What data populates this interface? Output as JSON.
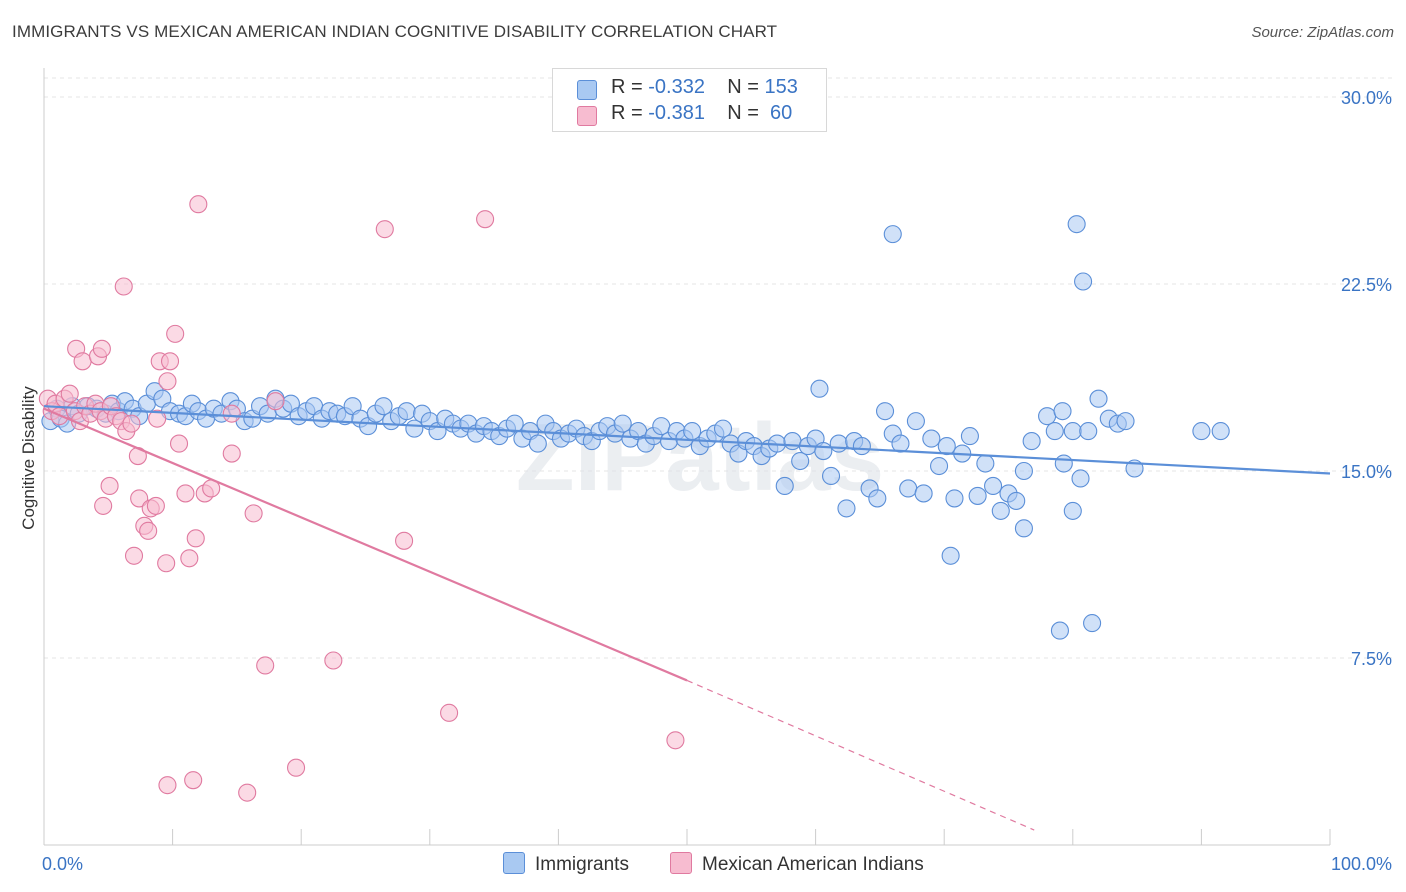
{
  "title": "IMMIGRANTS VS MEXICAN AMERICAN INDIAN COGNITIVE DISABILITY CORRELATION CHART",
  "source": "Source: ZipAtlas.com",
  "watermark": "ZIPatlas",
  "stats": [
    {
      "r_label": "R = ",
      "r_value": "-0.332",
      "n_label": "N = ",
      "n_value": "153",
      "color": "#a9c9f2",
      "border": "#5b8fd8"
    },
    {
      "r_label": "R = ",
      "r_value": "-0.381",
      "n_label": "N = ",
      "n_value": " 60",
      "color": "#f7bcd0",
      "border": "#e07aa0"
    }
  ],
  "legend": {
    "immigrants": "Immigrants",
    "mexican": "Mexican American Indians"
  },
  "chart_data": {
    "type": "scatter",
    "title": "IMMIGRANTS VS MEXICAN AMERICAN INDIAN COGNITIVE DISABILITY CORRELATION CHART",
    "xlabel": "",
    "ylabel": "Cognitive Disability",
    "xlim": [
      0,
      100
    ],
    "ylim": [
      0,
      31
    ],
    "x_tick_labels": [
      "0.0%",
      "100.0%"
    ],
    "y_ticks": [
      7.5,
      15.0,
      22.5,
      30.0
    ],
    "y_tick_labels": [
      "7.5%",
      "15.0%",
      "22.5%",
      "30.0%"
    ],
    "grid": true,
    "series": [
      {
        "name": "Immigrants",
        "color": "#5b8fd8",
        "fill": "#a9c9f2",
        "trend": {
          "x": [
            0,
            100
          ],
          "y": [
            17.6,
            14.9
          ],
          "style": "solid"
        },
        "points": [
          [
            0.5,
            17.0
          ],
          [
            1.0,
            17.5
          ],
          [
            1.3,
            17.1
          ],
          [
            1.8,
            16.9
          ],
          [
            2.2,
            17.6
          ],
          [
            2.7,
            17.3
          ],
          [
            3.4,
            17.6
          ],
          [
            4.1,
            17.5
          ],
          [
            4.8,
            17.3
          ],
          [
            5.3,
            17.7
          ],
          [
            5.8,
            17.4
          ],
          [
            6.3,
            17.8
          ],
          [
            6.9,
            17.5
          ],
          [
            7.4,
            17.2
          ],
          [
            8.0,
            17.7
          ],
          [
            8.6,
            18.2
          ],
          [
            9.2,
            17.9
          ],
          [
            9.8,
            17.4
          ],
          [
            10.5,
            17.3
          ],
          [
            11.0,
            17.2
          ],
          [
            11.5,
            17.7
          ],
          [
            12.0,
            17.4
          ],
          [
            12.6,
            17.1
          ],
          [
            13.2,
            17.5
          ],
          [
            13.8,
            17.3
          ],
          [
            14.5,
            17.8
          ],
          [
            15.0,
            17.5
          ],
          [
            15.6,
            17.0
          ],
          [
            16.2,
            17.1
          ],
          [
            16.8,
            17.6
          ],
          [
            17.4,
            17.3
          ],
          [
            18.0,
            17.9
          ],
          [
            18.6,
            17.5
          ],
          [
            19.2,
            17.7
          ],
          [
            19.8,
            17.2
          ],
          [
            20.4,
            17.4
          ],
          [
            21.0,
            17.6
          ],
          [
            21.6,
            17.1
          ],
          [
            22.2,
            17.4
          ],
          [
            22.8,
            17.3
          ],
          [
            23.4,
            17.2
          ],
          [
            24.0,
            17.6
          ],
          [
            24.6,
            17.1
          ],
          [
            25.2,
            16.8
          ],
          [
            25.8,
            17.3
          ],
          [
            26.4,
            17.6
          ],
          [
            27.0,
            17.0
          ],
          [
            27.6,
            17.2
          ],
          [
            28.2,
            17.4
          ],
          [
            28.8,
            16.7
          ],
          [
            29.4,
            17.3
          ],
          [
            30.0,
            17.0
          ],
          [
            30.6,
            16.6
          ],
          [
            31.2,
            17.1
          ],
          [
            31.8,
            16.9
          ],
          [
            32.4,
            16.7
          ],
          [
            33.0,
            16.9
          ],
          [
            33.6,
            16.5
          ],
          [
            34.2,
            16.8
          ],
          [
            34.8,
            16.6
          ],
          [
            35.4,
            16.4
          ],
          [
            36.0,
            16.7
          ],
          [
            36.6,
            16.9
          ],
          [
            37.2,
            16.3
          ],
          [
            37.8,
            16.6
          ],
          [
            38.4,
            16.1
          ],
          [
            39.0,
            16.9
          ],
          [
            39.6,
            16.6
          ],
          [
            40.2,
            16.3
          ],
          [
            40.8,
            16.5
          ],
          [
            41.4,
            16.7
          ],
          [
            42.0,
            16.4
          ],
          [
            42.6,
            16.2
          ],
          [
            43.2,
            16.6
          ],
          [
            43.8,
            16.8
          ],
          [
            44.4,
            16.5
          ],
          [
            45.0,
            16.9
          ],
          [
            45.6,
            16.3
          ],
          [
            46.2,
            16.6
          ],
          [
            46.8,
            16.1
          ],
          [
            47.4,
            16.4
          ],
          [
            48.0,
            16.8
          ],
          [
            48.6,
            16.2
          ],
          [
            49.2,
            16.6
          ],
          [
            49.8,
            16.3
          ],
          [
            50.4,
            16.6
          ],
          [
            51.0,
            16.0
          ],
          [
            51.6,
            16.3
          ],
          [
            52.2,
            16.5
          ],
          [
            52.8,
            16.7
          ],
          [
            53.4,
            16.1
          ],
          [
            54.0,
            15.7
          ],
          [
            54.6,
            16.2
          ],
          [
            55.2,
            16.0
          ],
          [
            55.8,
            15.6
          ],
          [
            56.4,
            15.9
          ],
          [
            57.0,
            16.1
          ],
          [
            57.6,
            14.4
          ],
          [
            58.2,
            16.2
          ],
          [
            58.8,
            15.4
          ],
          [
            59.4,
            16.0
          ],
          [
            60.0,
            16.3
          ],
          [
            60.6,
            15.8
          ],
          [
            61.2,
            14.8
          ],
          [
            61.8,
            16.1
          ],
          [
            62.4,
            13.5
          ],
          [
            63.0,
            16.2
          ],
          [
            63.6,
            16.0
          ],
          [
            64.2,
            14.3
          ],
          [
            64.8,
            13.9
          ],
          [
            65.4,
            17.4
          ],
          [
            66.0,
            16.5
          ],
          [
            66.6,
            16.1
          ],
          [
            67.2,
            14.3
          ],
          [
            67.8,
            17.0
          ],
          [
            68.4,
            14.1
          ],
          [
            69.0,
            16.3
          ],
          [
            69.6,
            15.2
          ],
          [
            70.2,
            16.0
          ],
          [
            70.8,
            13.9
          ],
          [
            71.4,
            15.7
          ],
          [
            72.0,
            16.4
          ],
          [
            72.6,
            14.0
          ],
          [
            73.2,
            15.3
          ],
          [
            73.8,
            14.4
          ],
          [
            74.4,
            13.4
          ],
          [
            75.0,
            14.1
          ],
          [
            75.6,
            13.8
          ],
          [
            76.2,
            15.0
          ],
          [
            76.8,
            16.2
          ],
          [
            60.3,
            18.3
          ],
          [
            66.0,
            24.5
          ],
          [
            80.3,
            24.9
          ],
          [
            80.8,
            22.6
          ],
          [
            78.0,
            17.2
          ],
          [
            78.6,
            16.6
          ],
          [
            79.2,
            17.4
          ],
          [
            80.0,
            16.6
          ],
          [
            70.5,
            11.6
          ],
          [
            79.0,
            8.6
          ],
          [
            81.5,
            8.9
          ],
          [
            76.2,
            12.7
          ],
          [
            79.3,
            15.3
          ],
          [
            80.0,
            13.4
          ],
          [
            80.6,
            14.7
          ],
          [
            81.2,
            16.6
          ],
          [
            90.0,
            16.6
          ],
          [
            91.5,
            16.6
          ],
          [
            82.0,
            17.9
          ],
          [
            82.8,
            17.1
          ],
          [
            83.5,
            16.9
          ],
          [
            84.1,
            17.0
          ],
          [
            84.8,
            15.1
          ]
        ]
      },
      {
        "name": "Mexican American Indians",
        "color": "#e07aa0",
        "fill": "#f7bcd0",
        "trend": {
          "x": [
            0,
            50
          ],
          "y": [
            17.5,
            6.6
          ],
          "style": "solid",
          "extend_to": [
            77,
            0.6
          ]
        },
        "points": [
          [
            0.3,
            17.9
          ],
          [
            0.6,
            17.4
          ],
          [
            0.9,
            17.7
          ],
          [
            1.2,
            17.2
          ],
          [
            1.6,
            17.9
          ],
          [
            2.0,
            18.1
          ],
          [
            2.4,
            17.4
          ],
          [
            2.8,
            17.0
          ],
          [
            3.2,
            17.6
          ],
          [
            3.6,
            17.3
          ],
          [
            4.0,
            17.7
          ],
          [
            4.4,
            17.4
          ],
          [
            4.8,
            17.1
          ],
          [
            5.2,
            17.6
          ],
          [
            5.6,
            17.2
          ],
          [
            6.0,
            17.0
          ],
          [
            6.4,
            16.6
          ],
          [
            6.8,
            16.9
          ],
          [
            2.5,
            19.9
          ],
          [
            3.0,
            19.4
          ],
          [
            4.2,
            19.6
          ],
          [
            4.5,
            19.9
          ],
          [
            6.2,
            22.4
          ],
          [
            9.0,
            19.4
          ],
          [
            9.8,
            19.4
          ],
          [
            10.2,
            20.5
          ],
          [
            12.0,
            25.7
          ],
          [
            9.6,
            18.6
          ],
          [
            8.8,
            17.1
          ],
          [
            10.5,
            16.1
          ],
          [
            7.3,
            15.6
          ],
          [
            4.6,
            13.6
          ],
          [
            5.1,
            14.4
          ],
          [
            7.4,
            13.9
          ],
          [
            8.3,
            13.5
          ],
          [
            7.8,
            12.8
          ],
          [
            8.1,
            12.6
          ],
          [
            8.7,
            13.6
          ],
          [
            11.0,
            14.1
          ],
          [
            12.5,
            14.1
          ],
          [
            13.0,
            14.3
          ],
          [
            11.8,
            12.3
          ],
          [
            11.3,
            11.5
          ],
          [
            7.0,
            11.6
          ],
          [
            9.5,
            11.3
          ],
          [
            14.6,
            15.7
          ],
          [
            16.3,
            13.3
          ],
          [
            18.0,
            17.8
          ],
          [
            26.5,
            24.7
          ],
          [
            34.3,
            25.1
          ],
          [
            28.0,
            12.2
          ],
          [
            17.2,
            7.2
          ],
          [
            22.5,
            7.4
          ],
          [
            31.5,
            5.3
          ],
          [
            11.6,
            2.6
          ],
          [
            9.6,
            2.4
          ],
          [
            15.8,
            2.1
          ],
          [
            19.6,
            3.1
          ],
          [
            49.1,
            4.2
          ],
          [
            14.6,
            17.3
          ]
        ]
      }
    ]
  }
}
